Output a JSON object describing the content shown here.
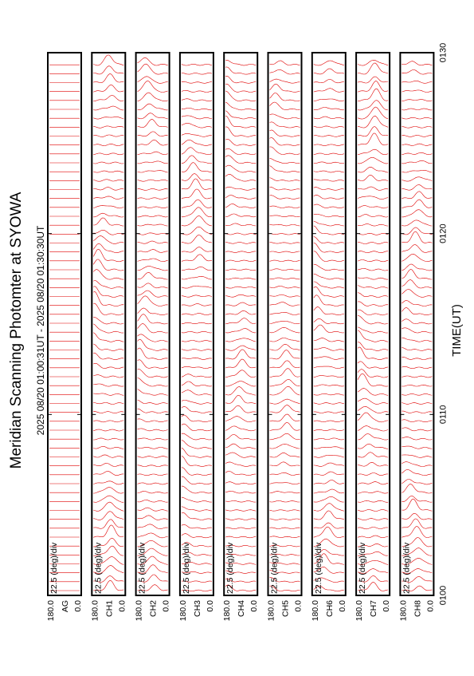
{
  "chart_data": {
    "type": "line",
    "title": "Meridian Scanning Photomter at SYOWA",
    "subtitle": "2025 08/20 01:00:31UT - 2025 08/20 01:30:30UT",
    "xlabel": "TIME(UT)",
    "x_ticks": [
      "0100",
      "0110",
      "0120",
      "0130"
    ],
    "xlim": [
      "01:00",
      "01:30"
    ],
    "scale_label": "22.5 (deg)/div",
    "y_tick_top": "180.0",
    "y_tick_bottom": "0.0",
    "panels": [
      {
        "label": "AG",
        "amplitude": 0.0
      },
      {
        "label": "CH1",
        "amplitude": 0.55
      },
      {
        "label": "CH2",
        "amplitude": 0.5
      },
      {
        "label": "CH3",
        "amplitude": 0.45
      },
      {
        "label": "CH4",
        "amplitude": 0.45
      },
      {
        "label": "CH5",
        "amplitude": 0.4
      },
      {
        "label": "CH6",
        "amplitude": 0.45
      },
      {
        "label": "CH7",
        "amplitude": 0.55
      },
      {
        "label": "CH8",
        "amplitude": 0.5
      }
    ],
    "scans_per_panel": 60,
    "grid": false,
    "legend": "none"
  },
  "colors": {
    "trace": "#e00000",
    "axes": "#000000"
  }
}
